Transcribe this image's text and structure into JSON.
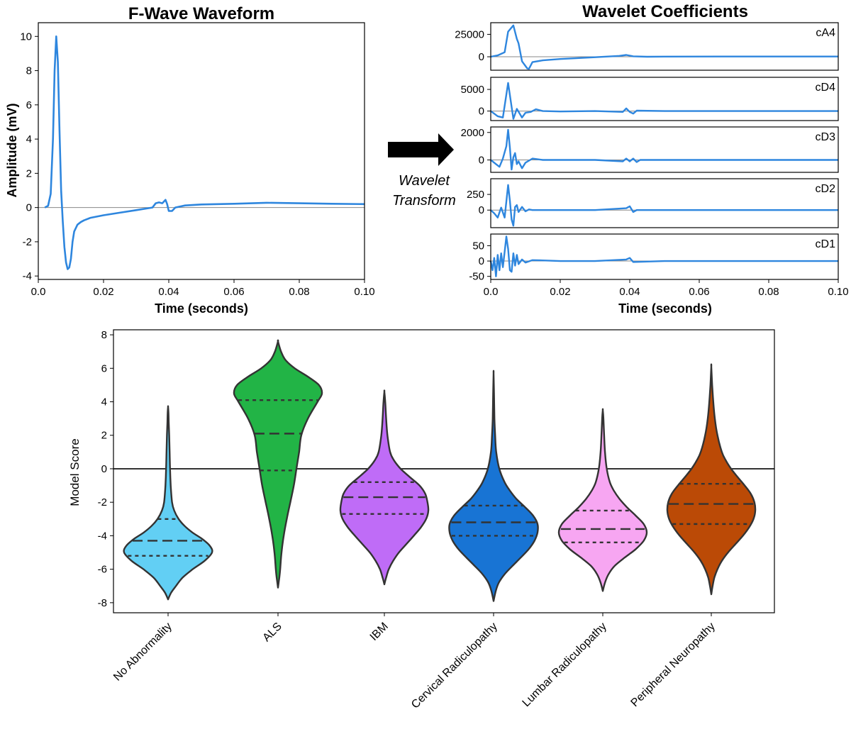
{
  "chart_data": [
    {
      "type": "line",
      "title": "F-Wave Waveform",
      "xlabel": "Time (seconds)",
      "ylabel": "Amplitude (mV)",
      "xlim": [
        0.0,
        0.1
      ],
      "ylim": [
        -4.2,
        10.8
      ],
      "xticks": [
        "0.0",
        "0.02",
        "0.04",
        "0.06",
        "0.08",
        "0.10"
      ],
      "yticks": [
        "10",
        "8",
        "6",
        "4",
        "2",
        "0",
        "-2",
        "-4"
      ],
      "color": "#2e86de",
      "x": [
        0.002,
        0.003,
        0.0038,
        0.0045,
        0.005,
        0.0055,
        0.006,
        0.0065,
        0.007,
        0.0075,
        0.008,
        0.0085,
        0.009,
        0.0095,
        0.01,
        0.0105,
        0.011,
        0.012,
        0.013,
        0.014,
        0.016,
        0.02,
        0.025,
        0.03,
        0.035,
        0.036,
        0.037,
        0.038,
        0.039,
        0.0395,
        0.04,
        0.041,
        0.042,
        0.045,
        0.05,
        0.06,
        0.07,
        0.08,
        0.09,
        0.1
      ],
      "y": [
        0.0,
        0.1,
        0.8,
        4.0,
        8.0,
        10.0,
        8.5,
        4.5,
        1.0,
        -0.8,
        -2.3,
        -3.2,
        -3.6,
        -3.5,
        -3.0,
        -2.0,
        -1.4,
        -1.0,
        -0.85,
        -0.75,
        -0.6,
        -0.45,
        -0.3,
        -0.15,
        0.0,
        0.25,
        0.3,
        0.25,
        0.45,
        0.2,
        -0.2,
        -0.2,
        0.0,
        0.12,
        0.18,
        0.22,
        0.28,
        0.25,
        0.22,
        0.2
      ]
    },
    {
      "type": "line",
      "title": "Wavelet Coefficients",
      "xlabel": "Time (seconds)",
      "xlim": [
        0.0,
        0.1
      ],
      "xticks": [
        "0.0",
        "0.02",
        "0.04",
        "0.06",
        "0.08",
        "0.10"
      ],
      "color": "#2e86de",
      "subplots": [
        {
          "label": "cA4",
          "ylim": [
            -15000,
            38000
          ],
          "yticks": [
            0,
            25000
          ],
          "ytick_labels": [
            "0",
            "25000"
          ],
          "x": [
            0.0,
            0.002,
            0.004,
            0.005,
            0.0065,
            0.0075,
            0.008,
            0.009,
            0.0105,
            0.011,
            0.012,
            0.015,
            0.02,
            0.03,
            0.037,
            0.039,
            0.041,
            0.045,
            0.05,
            0.07,
            0.1
          ],
          "y": [
            0,
            1500,
            5000,
            28000,
            35000,
            20000,
            15000,
            -5000,
            -13000,
            -13500,
            -6000,
            -4000,
            -2500,
            -500,
            1000,
            2000,
            500,
            0,
            200,
            300,
            300
          ]
        },
        {
          "label": "cD4",
          "ylim": [
            -2200,
            7800
          ],
          "yticks": [
            0,
            5000
          ],
          "ytick_labels": [
            "0",
            "5000"
          ],
          "x": [
            0.0,
            0.002,
            0.0035,
            0.005,
            0.006,
            0.0065,
            0.0075,
            0.009,
            0.01,
            0.0115,
            0.013,
            0.015,
            0.02,
            0.03,
            0.038,
            0.039,
            0.04,
            0.041,
            0.042,
            0.05,
            0.1
          ],
          "y": [
            0,
            -1200,
            -1500,
            6500,
            1000,
            -1800,
            500,
            -1500,
            -400,
            -200,
            400,
            0,
            -100,
            0,
            -200,
            600,
            -200,
            -600,
            100,
            0,
            0
          ]
        },
        {
          "label": "cD3",
          "ylim": [
            -900,
            2400
          ],
          "yticks": [
            0,
            2000
          ],
          "ytick_labels": [
            "0",
            "2000"
          ],
          "x": [
            0.0,
            0.0015,
            0.0025,
            0.0035,
            0.0045,
            0.005,
            0.0055,
            0.006,
            0.0065,
            0.007,
            0.0075,
            0.008,
            0.009,
            0.01,
            0.012,
            0.015,
            0.03,
            0.038,
            0.039,
            0.04,
            0.041,
            0.042,
            0.043,
            0.06,
            0.1
          ],
          "y": [
            0,
            -300,
            -500,
            100,
            1000,
            2200,
            900,
            -700,
            200,
            500,
            -300,
            -100,
            -600,
            -200,
            100,
            0,
            0,
            -100,
            100,
            -100,
            100,
            -150,
            0,
            0,
            0
          ]
        },
        {
          "label": "cD2",
          "ylim": [
            -280,
            500
          ],
          "yticks": [
            0,
            250
          ],
          "ytick_labels": [
            "0",
            "250"
          ],
          "x": [
            0.0,
            0.001,
            0.002,
            0.003,
            0.004,
            0.005,
            0.0055,
            0.006,
            0.0065,
            0.007,
            0.0075,
            0.008,
            0.009,
            0.01,
            0.011,
            0.012,
            0.015,
            0.02,
            0.03,
            0.039,
            0.04,
            0.041,
            0.042,
            0.05,
            0.1
          ],
          "y": [
            0,
            -50,
            -120,
            40,
            -120,
            400,
            150,
            -150,
            -250,
            50,
            80,
            -30,
            50,
            -20,
            10,
            0,
            0,
            0,
            0,
            30,
            60,
            -30,
            0,
            0,
            0
          ]
        },
        {
          "label": "cD1",
          "ylim": [
            -60,
            88
          ],
          "yticks": [
            -50,
            0,
            50
          ],
          "ytick_labels": [
            "-50",
            "0",
            "50"
          ],
          "x": [
            0.0,
            0.0005,
            0.001,
            0.0015,
            0.002,
            0.0025,
            0.003,
            0.0035,
            0.004,
            0.0045,
            0.005,
            0.0055,
            0.006,
            0.0065,
            0.007,
            0.0075,
            0.008,
            0.009,
            0.01,
            0.012,
            0.015,
            0.02,
            0.03,
            0.039,
            0.04,
            0.041,
            0.05,
            0.1
          ],
          "y": [
            0,
            -30,
            10,
            -50,
            20,
            -30,
            25,
            -20,
            30,
            80,
            40,
            -30,
            -35,
            25,
            -15,
            20,
            -10,
            5,
            -5,
            3,
            2,
            0,
            0,
            5,
            10,
            -3,
            0,
            0
          ]
        }
      ]
    },
    {
      "type": "violin",
      "ylabel": "Model Score",
      "ylim": [
        -8.6,
        8.3
      ],
      "yticks": [
        "8",
        "6",
        "4",
        "2",
        "0",
        "-2",
        "-4",
        "-6",
        "-8"
      ],
      "reference_line": 0,
      "categories": [
        "No Abnormality",
        "ALS",
        "IBM",
        "Cervical Radiculopathy",
        "Lumbar Radiculopathy",
        "Peripheral Neuropathy"
      ],
      "series": [
        {
          "color": "#62cff4",
          "quartiles": [
            -5.2,
            -4.3,
            -3.0
          ],
          "profile": [
            [
              -7.8,
              0.0
            ],
            [
              -7.4,
              0.07
            ],
            [
              -7.0,
              0.18
            ],
            [
              -6.5,
              0.33
            ],
            [
              -6.0,
              0.56
            ],
            [
              -5.5,
              0.83
            ],
            [
              -5.0,
              1.0
            ],
            [
              -4.6,
              0.95
            ],
            [
              -4.2,
              0.78
            ],
            [
              -3.8,
              0.55
            ],
            [
              -3.4,
              0.37
            ],
            [
              -3.0,
              0.24
            ],
            [
              -2.5,
              0.14
            ],
            [
              -2.0,
              0.09
            ],
            [
              -1.0,
              0.06
            ],
            [
              0.0,
              0.045
            ],
            [
              1.0,
              0.035
            ],
            [
              2.0,
              0.025
            ],
            [
              2.8,
              0.015
            ],
            [
              3.4,
              0.008
            ],
            [
              3.7,
              0.0
            ]
          ]
        },
        {
          "color": "#22b446",
          "quartiles": [
            -0.1,
            2.1,
            4.1
          ],
          "profile": [
            [
              -7.1,
              0.0
            ],
            [
              -6.5,
              0.03
            ],
            [
              -6.0,
              0.05
            ],
            [
              -5.0,
              0.08
            ],
            [
              -4.0,
              0.13
            ],
            [
              -3.0,
              0.2
            ],
            [
              -2.0,
              0.28
            ],
            [
              -1.0,
              0.36
            ],
            [
              0.0,
              0.42
            ],
            [
              1.0,
              0.48
            ],
            [
              2.0,
              0.53
            ],
            [
              3.0,
              0.68
            ],
            [
              4.0,
              0.9
            ],
            [
              4.5,
              1.0
            ],
            [
              5.0,
              0.93
            ],
            [
              5.5,
              0.68
            ],
            [
              6.0,
              0.38
            ],
            [
              6.5,
              0.17
            ],
            [
              7.0,
              0.07
            ],
            [
              7.6,
              0.0
            ]
          ]
        },
        {
          "color": "#bf6cf7",
          "quartiles": [
            -2.7,
            -1.7,
            -0.8
          ],
          "profile": [
            [
              -6.9,
              0.0
            ],
            [
              -6.5,
              0.04
            ],
            [
              -6.0,
              0.1
            ],
            [
              -5.5,
              0.2
            ],
            [
              -5.0,
              0.33
            ],
            [
              -4.5,
              0.5
            ],
            [
              -4.0,
              0.67
            ],
            [
              -3.5,
              0.83
            ],
            [
              -3.0,
              0.95
            ],
            [
              -2.5,
              1.0
            ],
            [
              -2.0,
              0.98
            ],
            [
              -1.5,
              0.93
            ],
            [
              -1.0,
              0.8
            ],
            [
              -0.5,
              0.58
            ],
            [
              0.0,
              0.37
            ],
            [
              0.5,
              0.22
            ],
            [
              1.0,
              0.13
            ],
            [
              2.0,
              0.07
            ],
            [
              3.0,
              0.04
            ],
            [
              4.0,
              0.02
            ],
            [
              4.6,
              0.0
            ]
          ]
        },
        {
          "color": "#1874d4",
          "quartiles": [
            -4.0,
            -3.2,
            -2.2
          ],
          "profile": [
            [
              -7.9,
              0.0
            ],
            [
              -7.3,
              0.05
            ],
            [
              -6.8,
              0.12
            ],
            [
              -6.3,
              0.25
            ],
            [
              -5.8,
              0.43
            ],
            [
              -5.3,
              0.62
            ],
            [
              -4.8,
              0.8
            ],
            [
              -4.3,
              0.93
            ],
            [
              -3.8,
              1.0
            ],
            [
              -3.3,
              1.0
            ],
            [
              -2.8,
              0.9
            ],
            [
              -2.3,
              0.72
            ],
            [
              -1.8,
              0.52
            ],
            [
              -1.3,
              0.37
            ],
            [
              -0.8,
              0.25
            ],
            [
              0.0,
              0.13
            ],
            [
              1.0,
              0.06
            ],
            [
              2.0,
              0.035
            ],
            [
              3.0,
              0.02
            ],
            [
              4.5,
              0.01
            ],
            [
              5.7,
              0.0
            ]
          ]
        },
        {
          "color": "#f7a6f2",
          "quartiles": [
            -4.4,
            -3.6,
            -2.5
          ],
          "profile": [
            [
              -7.3,
              0.0
            ],
            [
              -6.8,
              0.05
            ],
            [
              -6.3,
              0.13
            ],
            [
              -5.8,
              0.27
            ],
            [
              -5.3,
              0.5
            ],
            [
              -4.8,
              0.75
            ],
            [
              -4.3,
              0.93
            ],
            [
              -3.8,
              1.0
            ],
            [
              -3.3,
              0.93
            ],
            [
              -2.8,
              0.75
            ],
            [
              -2.3,
              0.55
            ],
            [
              -1.8,
              0.38
            ],
            [
              -1.3,
              0.25
            ],
            [
              -0.8,
              0.16
            ],
            [
              0.0,
              0.09
            ],
            [
              1.0,
              0.05
            ],
            [
              2.0,
              0.03
            ],
            [
              3.0,
              0.015
            ],
            [
              3.5,
              0.0
            ]
          ]
        },
        {
          "color": "#bb4a06",
          "quartiles": [
            -3.3,
            -2.1,
            -0.9
          ],
          "profile": [
            [
              -7.5,
              0.0
            ],
            [
              -7.0,
              0.03
            ],
            [
              -6.5,
              0.07
            ],
            [
              -6.0,
              0.14
            ],
            [
              -5.5,
              0.24
            ],
            [
              -5.0,
              0.38
            ],
            [
              -4.5,
              0.55
            ],
            [
              -4.0,
              0.72
            ],
            [
              -3.5,
              0.86
            ],
            [
              -3.0,
              0.96
            ],
            [
              -2.5,
              1.0
            ],
            [
              -2.0,
              0.98
            ],
            [
              -1.5,
              0.9
            ],
            [
              -1.0,
              0.76
            ],
            [
              -0.5,
              0.6
            ],
            [
              0.0,
              0.45
            ],
            [
              0.5,
              0.33
            ],
            [
              1.0,
              0.24
            ],
            [
              2.0,
              0.14
            ],
            [
              3.0,
              0.08
            ],
            [
              4.0,
              0.045
            ],
            [
              5.0,
              0.02
            ],
            [
              6.1,
              0.0
            ]
          ]
        }
      ]
    }
  ],
  "arrow": {
    "line1": "Wavelet",
    "line2": "Transform"
  }
}
